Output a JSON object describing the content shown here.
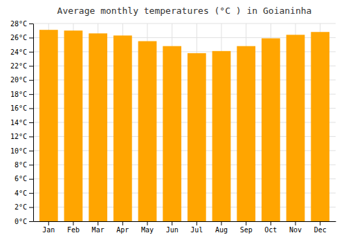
{
  "chart_data": {
    "type": "bar",
    "title": "Average monthly temperatures (°C ) in Goianinha",
    "categories": [
      "Jan",
      "Feb",
      "Mar",
      "Apr",
      "May",
      "Jun",
      "Jul",
      "Aug",
      "Sep",
      "Oct",
      "Nov",
      "Dec"
    ],
    "values": [
      27.1,
      27.0,
      26.6,
      26.3,
      25.5,
      24.8,
      23.8,
      24.1,
      24.8,
      25.9,
      26.4,
      26.8
    ],
    "color": "#FFA500",
    "ylim": [
      0,
      28
    ],
    "yticks": [
      {
        "value": 0,
        "label": "0°C"
      },
      {
        "value": 2,
        "label": "2°C"
      },
      {
        "value": 4,
        "label": "4°C"
      },
      {
        "value": 6,
        "label": "6°C"
      },
      {
        "value": 8,
        "label": "8°C"
      },
      {
        "value": 10,
        "label": "10°C"
      },
      {
        "value": 12,
        "label": "12°C"
      },
      {
        "value": 14,
        "label": "14°C"
      },
      {
        "value": 16,
        "label": "16°C"
      },
      {
        "value": 18,
        "label": "18°C"
      },
      {
        "value": 20,
        "label": "20°C"
      },
      {
        "value": 22,
        "label": "22°C"
      },
      {
        "value": 24,
        "label": "24°C"
      },
      {
        "value": 26,
        "label": "26°C"
      },
      {
        "value": 28,
        "label": "28°C"
      }
    ],
    "grid": true
  }
}
